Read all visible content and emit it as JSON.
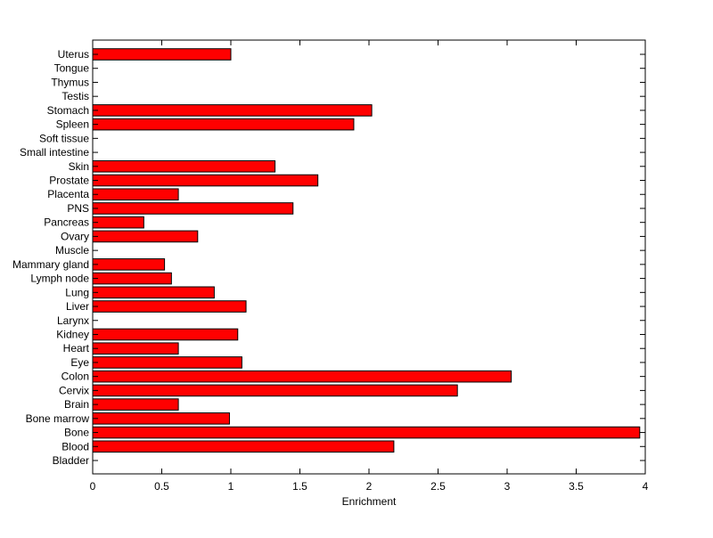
{
  "chart_data": {
    "type": "bar",
    "orientation": "horizontal",
    "title": "",
    "xlabel": "Enrichment",
    "ylabel": "",
    "xlim": [
      0,
      4
    ],
    "xticks": [
      0,
      0.5,
      1,
      1.5,
      2,
      2.5,
      3,
      3.5,
      4
    ],
    "xtick_labels": [
      "0",
      "0.5",
      "1",
      "1.5",
      "2",
      "2.5",
      "3",
      "3.5",
      "4"
    ],
    "grid": false,
    "legend": "none",
    "bar_color": "#ff0000",
    "bar_edge_color": "#000000",
    "categories": [
      "Bladder",
      "Blood",
      "Bone",
      "Bone marrow",
      "Brain",
      "Cervix",
      "Colon",
      "Eye",
      "Heart",
      "Kidney",
      "Larynx",
      "Liver",
      "Lung",
      "Lymph node",
      "Mammary gland",
      "Muscle",
      "Ovary",
      "Pancreas",
      "PNS",
      "Placenta",
      "Prostate",
      "Skin",
      "Small intestine",
      "Soft tissue",
      "Spleen",
      "Stomach",
      "Testis",
      "Thymus",
      "Tongue",
      "Uterus"
    ],
    "values": [
      0,
      2.18,
      3.96,
      0.99,
      0.62,
      2.64,
      3.03,
      1.08,
      0.62,
      1.05,
      0,
      1.11,
      0.88,
      0.57,
      0.52,
      0,
      0.76,
      0.37,
      1.45,
      0.62,
      1.63,
      1.32,
      0,
      0,
      1.89,
      2.02,
      0,
      0,
      0,
      1.0
    ]
  }
}
